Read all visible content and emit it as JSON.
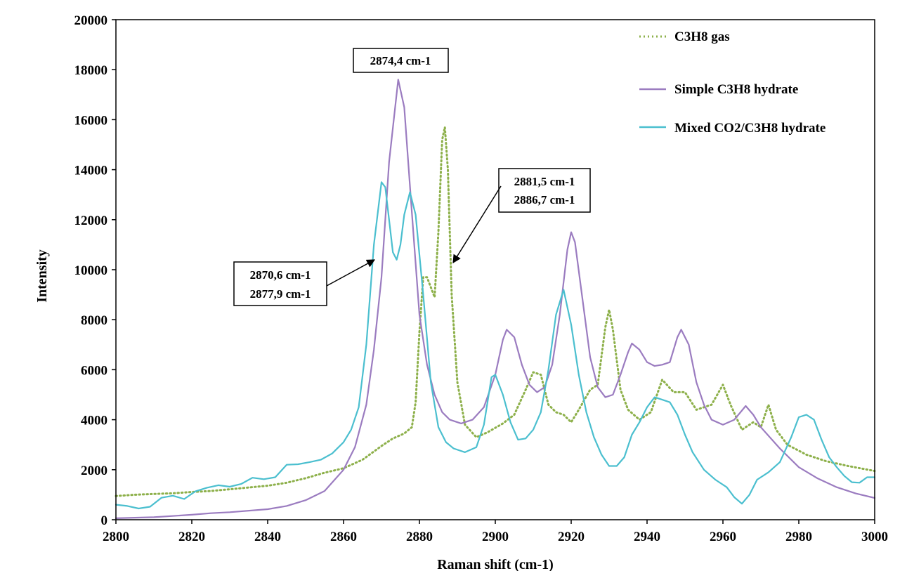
{
  "chart_data": {
    "type": "line",
    "title": "",
    "xlabel": "Raman shift (cm-1)",
    "ylabel": "Intensity",
    "xlim": [
      2800,
      3000
    ],
    "ylim": [
      0,
      20000
    ],
    "x_ticks": [
      2800,
      2820,
      2840,
      2860,
      2880,
      2900,
      2920,
      2940,
      2960,
      2980,
      3000
    ],
    "y_ticks": [
      0,
      2000,
      4000,
      6000,
      8000,
      10000,
      12000,
      14000,
      16000,
      18000,
      20000
    ],
    "grid": false,
    "legend_position": "top-right",
    "series": [
      {
        "name": "C3H8 gas",
        "color": "#8db04a",
        "dash": "dotted",
        "points": [
          [
            2800,
            950
          ],
          [
            2805,
            1000
          ],
          [
            2810,
            1030
          ],
          [
            2815,
            1060
          ],
          [
            2820,
            1110
          ],
          [
            2825,
            1150
          ],
          [
            2830,
            1220
          ],
          [
            2835,
            1290
          ],
          [
            2840,
            1360
          ],
          [
            2845,
            1480
          ],
          [
            2850,
            1660
          ],
          [
            2855,
            1880
          ],
          [
            2860,
            2060
          ],
          [
            2865,
            2400
          ],
          [
            2870,
            2950
          ],
          [
            2873,
            3250
          ],
          [
            2876,
            3450
          ],
          [
            2878,
            3700
          ],
          [
            2879,
            4700
          ],
          [
            2880,
            7500
          ],
          [
            2881,
            9700
          ],
          [
            2882,
            9700
          ],
          [
            2883,
            9300
          ],
          [
            2884,
            8900
          ],
          [
            2885,
            11500
          ],
          [
            2886,
            15200
          ],
          [
            2886.7,
            15700
          ],
          [
            2887.5,
            14000
          ],
          [
            2888.5,
            9000
          ],
          [
            2890,
            5500
          ],
          [
            2892,
            3800
          ],
          [
            2895,
            3300
          ],
          [
            2898,
            3500
          ],
          [
            2902,
            3850
          ],
          [
            2905,
            4200
          ],
          [
            2908,
            5200
          ],
          [
            2910,
            5900
          ],
          [
            2912,
            5800
          ],
          [
            2914,
            4600
          ],
          [
            2916,
            4300
          ],
          [
            2918,
            4200
          ],
          [
            2920,
            3900
          ],
          [
            2922,
            4400
          ],
          [
            2925,
            5200
          ],
          [
            2927,
            5400
          ],
          [
            2929,
            7700
          ],
          [
            2930,
            8400
          ],
          [
            2931,
            7600
          ],
          [
            2933,
            5200
          ],
          [
            2935,
            4400
          ],
          [
            2938,
            4000
          ],
          [
            2941,
            4300
          ],
          [
            2944,
            5600
          ],
          [
            2947,
            5100
          ],
          [
            2950,
            5100
          ],
          [
            2953,
            4400
          ],
          [
            2957,
            4600
          ],
          [
            2960,
            5400
          ],
          [
            2962,
            4600
          ],
          [
            2965,
            3600
          ],
          [
            2968,
            3900
          ],
          [
            2970,
            3700
          ],
          [
            2972,
            4600
          ],
          [
            2974,
            3600
          ],
          [
            2977,
            3000
          ],
          [
            2982,
            2600
          ],
          [
            2987,
            2350
          ],
          [
            2993,
            2150
          ],
          [
            3000,
            1950
          ]
        ]
      },
      {
        "name": "Simple C3H8 hydrate",
        "color": "#9b7cc0",
        "dash": "solid",
        "points": [
          [
            2800,
            60
          ],
          [
            2810,
            100
          ],
          [
            2820,
            200
          ],
          [
            2825,
            260
          ],
          [
            2830,
            300
          ],
          [
            2840,
            420
          ],
          [
            2845,
            550
          ],
          [
            2850,
            780
          ],
          [
            2855,
            1150
          ],
          [
            2860,
            2000
          ],
          [
            2863,
            2900
          ],
          [
            2866,
            4600
          ],
          [
            2868,
            6800
          ],
          [
            2870,
            9700
          ],
          [
            2872,
            14300
          ],
          [
            2874.4,
            17600
          ],
          [
            2876,
            16500
          ],
          [
            2878,
            12300
          ],
          [
            2880,
            8200
          ],
          [
            2882,
            6200
          ],
          [
            2884,
            5000
          ],
          [
            2886,
            4300
          ],
          [
            2888,
            4000
          ],
          [
            2891,
            3850
          ],
          [
            2894,
            4000
          ],
          [
            2897,
            4500
          ],
          [
            2900,
            5800
          ],
          [
            2902,
            7200
          ],
          [
            2903,
            7600
          ],
          [
            2905,
            7300
          ],
          [
            2907,
            6200
          ],
          [
            2909,
            5400
          ],
          [
            2911,
            5100
          ],
          [
            2913,
            5300
          ],
          [
            2915,
            6200
          ],
          [
            2917,
            8200
          ],
          [
            2919,
            10800
          ],
          [
            2920,
            11500
          ],
          [
            2921,
            11100
          ],
          [
            2923,
            8800
          ],
          [
            2925,
            6500
          ],
          [
            2927,
            5300
          ],
          [
            2929,
            4900
          ],
          [
            2931,
            5000
          ],
          [
            2933,
            5800
          ],
          [
            2935,
            6700
          ],
          [
            2936,
            7050
          ],
          [
            2938,
            6800
          ],
          [
            2940,
            6300
          ],
          [
            2942,
            6150
          ],
          [
            2944,
            6200
          ],
          [
            2946,
            6300
          ],
          [
            2948,
            7300
          ],
          [
            2949,
            7600
          ],
          [
            2951,
            7000
          ],
          [
            2953,
            5500
          ],
          [
            2955,
            4600
          ],
          [
            2957,
            4000
          ],
          [
            2960,
            3800
          ],
          [
            2963,
            4000
          ],
          [
            2966,
            4550
          ],
          [
            2968,
            4200
          ],
          [
            2970,
            3700
          ],
          [
            2975,
            2850
          ],
          [
            2980,
            2100
          ],
          [
            2985,
            1650
          ],
          [
            2990,
            1300
          ],
          [
            2995,
            1050
          ],
          [
            3000,
            870
          ]
        ]
      },
      {
        "name": "Mixed CO2/C3H8 hydrate",
        "color": "#4bbfcf",
        "dash": "solid",
        "points": [
          [
            2800,
            600
          ],
          [
            2803,
            550
          ],
          [
            2806,
            450
          ],
          [
            2809,
            520
          ],
          [
            2812,
            880
          ],
          [
            2815,
            960
          ],
          [
            2818,
            830
          ],
          [
            2821,
            1140
          ],
          [
            2824,
            1280
          ],
          [
            2827,
            1380
          ],
          [
            2830,
            1320
          ],
          [
            2833,
            1430
          ],
          [
            2836,
            1680
          ],
          [
            2839,
            1620
          ],
          [
            2842,
            1700
          ],
          [
            2845,
            2200
          ],
          [
            2848,
            2220
          ],
          [
            2851,
            2300
          ],
          [
            2854,
            2400
          ],
          [
            2857,
            2650
          ],
          [
            2860,
            3100
          ],
          [
            2862,
            3600
          ],
          [
            2864,
            4500
          ],
          [
            2866,
            7000
          ],
          [
            2868,
            11000
          ],
          [
            2870,
            13500
          ],
          [
            2871,
            13300
          ],
          [
            2872,
            12000
          ],
          [
            2873,
            10700
          ],
          [
            2874,
            10400
          ],
          [
            2875,
            11000
          ],
          [
            2876,
            12200
          ],
          [
            2877.5,
            13100
          ],
          [
            2879,
            12200
          ],
          [
            2881,
            9000
          ],
          [
            2883,
            5500
          ],
          [
            2885,
            3700
          ],
          [
            2887,
            3100
          ],
          [
            2889,
            2850
          ],
          [
            2892,
            2700
          ],
          [
            2895,
            2900
          ],
          [
            2897,
            3800
          ],
          [
            2899,
            5700
          ],
          [
            2900,
            5800
          ],
          [
            2902,
            5000
          ],
          [
            2904,
            3900
          ],
          [
            2906,
            3200
          ],
          [
            2908,
            3250
          ],
          [
            2910,
            3600
          ],
          [
            2912,
            4300
          ],
          [
            2914,
            6000
          ],
          [
            2916,
            8200
          ],
          [
            2918,
            9200
          ],
          [
            2920,
            7800
          ],
          [
            2922,
            5800
          ],
          [
            2924,
            4300
          ],
          [
            2926,
            3300
          ],
          [
            2928,
            2600
          ],
          [
            2930,
            2150
          ],
          [
            2932,
            2150
          ],
          [
            2934,
            2500
          ],
          [
            2936,
            3400
          ],
          [
            2938,
            3900
          ],
          [
            2940,
            4500
          ],
          [
            2942,
            4900
          ],
          [
            2944,
            4800
          ],
          [
            2946,
            4700
          ],
          [
            2948,
            4200
          ],
          [
            2950,
            3400
          ],
          [
            2952,
            2700
          ],
          [
            2955,
            2000
          ],
          [
            2958,
            1600
          ],
          [
            2961,
            1300
          ],
          [
            2963,
            900
          ],
          [
            2965,
            640
          ],
          [
            2967,
            1000
          ],
          [
            2969,
            1600
          ],
          [
            2972,
            1900
          ],
          [
            2975,
            2300
          ],
          [
            2978,
            3300
          ],
          [
            2980,
            4100
          ],
          [
            2982,
            4200
          ],
          [
            2984,
            4000
          ],
          [
            2986,
            3200
          ],
          [
            2988,
            2500
          ],
          [
            2990,
            2100
          ],
          [
            2992,
            1750
          ],
          [
            2994,
            1500
          ],
          [
            2996,
            1480
          ],
          [
            2998,
            1700
          ],
          [
            3000,
            1700
          ]
        ]
      }
    ],
    "annotations": [
      {
        "lines": [
          "2874,4 cm-1"
        ]
      },
      {
        "lines": [
          "2881,5 cm-1",
          "2886,7 cm-1"
        ]
      },
      {
        "lines": [
          "2870,6 cm-1",
          "2877,9 cm-1"
        ]
      }
    ]
  }
}
